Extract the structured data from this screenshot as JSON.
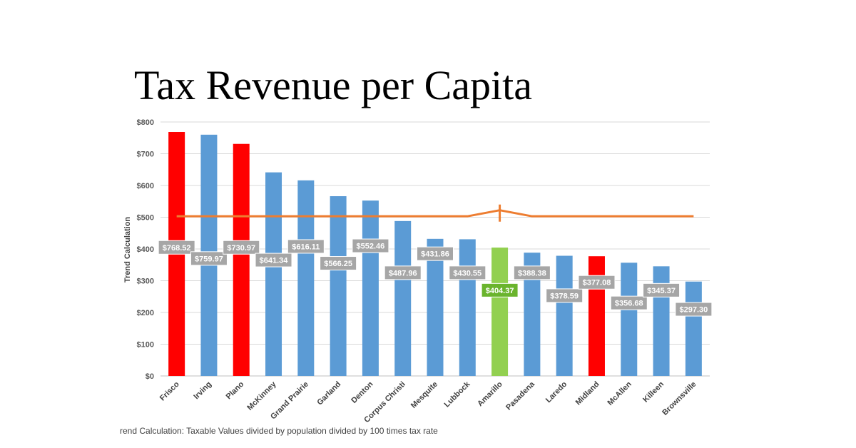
{
  "page": {
    "title": "Tax Revenue per Capita",
    "footnote": "rend Calculation: Taxable Values divided by population divided by 100 times tax rate"
  },
  "chart_data": {
    "type": "bar",
    "ylabel": "Trend Calculation",
    "xlabel": "",
    "ylim": [
      0,
      800
    ],
    "yticks": [
      0,
      100,
      200,
      300,
      400,
      500,
      600,
      700,
      800
    ],
    "ytick_labels": [
      "$0",
      "$100",
      "$200",
      "$300",
      "$400",
      "$500",
      "$600",
      "$700",
      "$800"
    ],
    "grid": true,
    "categories": [
      "Frisco",
      "Irving",
      "Plano",
      "McKinney",
      "Grand Prairie",
      "Garland",
      "Denton",
      "Corpus Christi",
      "Mesquite",
      "Lubbock",
      "Amarillo",
      "Pasadena",
      "Laredo",
      "Midland",
      "McAllen",
      "Killeen",
      "Brownsville"
    ],
    "values": [
      768.52,
      759.97,
      730.97,
      641.34,
      616.11,
      566.25,
      552.46,
      487.96,
      431.86,
      430.55,
      404.37,
      388.38,
      378.59,
      377.08,
      356.68,
      345.37,
      297.3
    ],
    "data_labels": [
      "$768.52",
      "$759.97",
      "$730.97",
      "$641.34",
      "$616.11",
      "$566.25",
      "$552.46",
      "$487.96",
      "$431.86",
      "$430.55",
      "$404.37",
      "$388.38",
      "$378.59",
      "$377.08",
      "$356.68",
      "$345.37",
      "$297.30"
    ],
    "bar_colors": [
      "#ff0000",
      "#5b9bd5",
      "#ff0000",
      "#5b9bd5",
      "#5b9bd5",
      "#5b9bd5",
      "#5b9bd5",
      "#5b9bd5",
      "#5b9bd5",
      "#5b9bd5",
      "#92d050",
      "#5b9bd5",
      "#5b9bd5",
      "#ff0000",
      "#5b9bd5",
      "#5b9bd5",
      "#5b9bd5"
    ],
    "label_colors": [
      "#a6a6a6",
      "#a6a6a6",
      "#a6a6a6",
      "#a6a6a6",
      "#a6a6a6",
      "#a6a6a6",
      "#a6a6a6",
      "#a6a6a6",
      "#a6a6a6",
      "#a6a6a6",
      "#6ab42d",
      "#a6a6a6",
      "#a6a6a6",
      "#a6a6a6",
      "#a6a6a6",
      "#a6a6a6",
      "#a6a6a6"
    ],
    "label_values": [
      405,
      370,
      405,
      365,
      408,
      355,
      410,
      325,
      385,
      325,
      270,
      325,
      253,
      295,
      230,
      270,
      210
    ],
    "reference_line": {
      "value": 503,
      "color": "#ed7d31",
      "peak_category": "Amarillo",
      "peak_value": 522
    }
  }
}
